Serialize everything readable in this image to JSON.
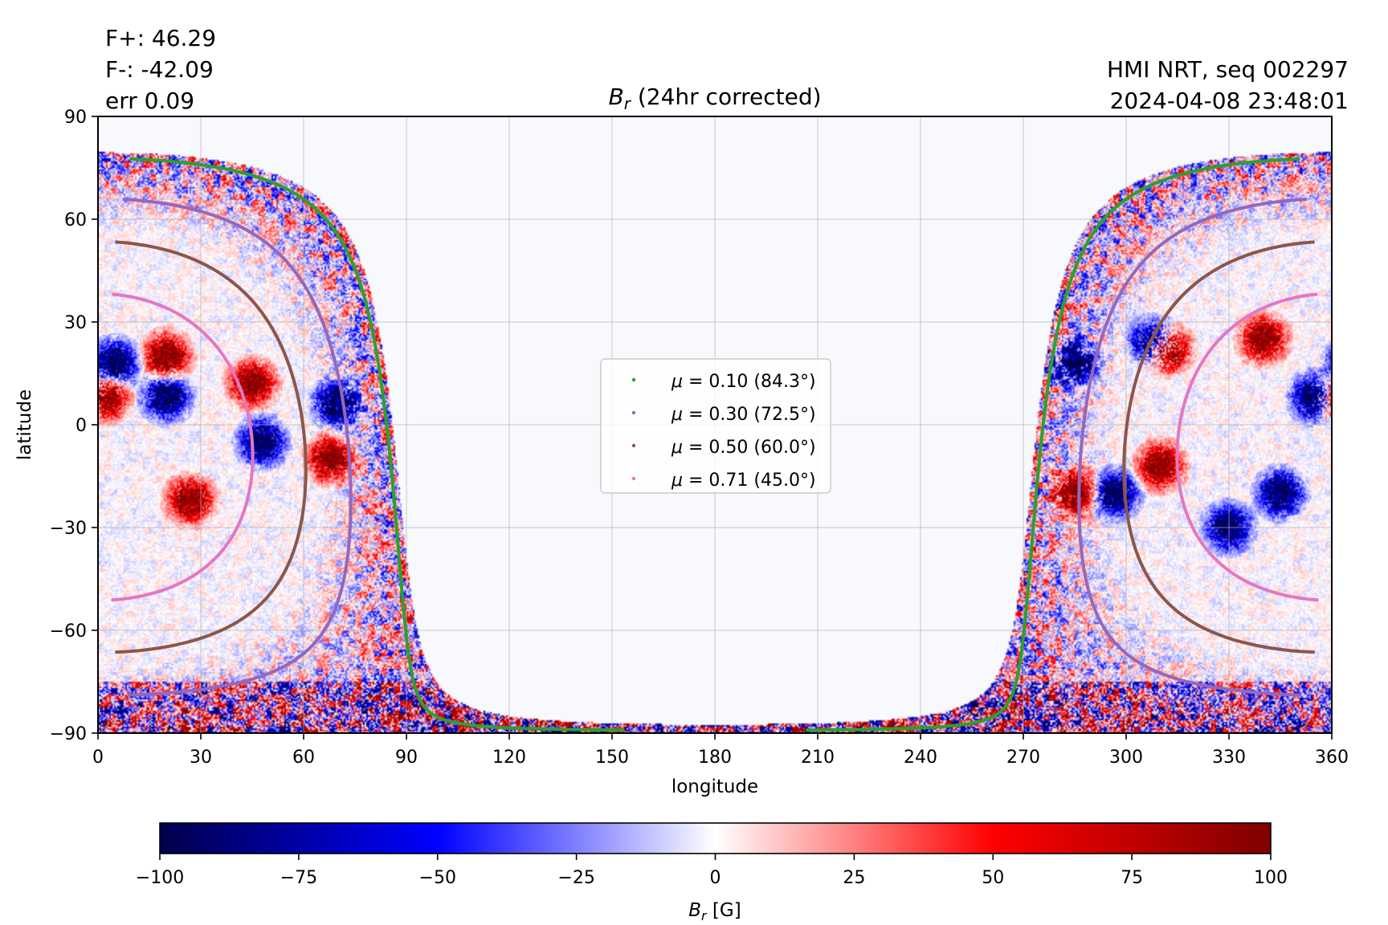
{
  "annotations": {
    "flux_plus": "F+: 46.29",
    "flux_minus": "F-: -42.09",
    "error": "err 0.09",
    "instrument": "HMI NRT, seq 002297",
    "timestamp": "2024-04-08 23:48:01"
  },
  "chart_data": {
    "type": "heatmap",
    "title": "B_r (24hr corrected)",
    "title_symbol": "B",
    "title_subscript": "r",
    "title_rest": " (24hr corrected)",
    "xlabel": "longitude",
    "ylabel": "latitude",
    "xlim": [
      0,
      360
    ],
    "ylim": [
      -90,
      90
    ],
    "xticks": [
      "0",
      "30",
      "60",
      "90",
      "120",
      "150",
      "180",
      "210",
      "240",
      "270",
      "300",
      "330",
      "360"
    ],
    "xtick_values": [
      0,
      30,
      60,
      90,
      120,
      150,
      180,
      210,
      240,
      270,
      300,
      330,
      360
    ],
    "yticks": [
      "−90",
      "−60",
      "−30",
      "0",
      "30",
      "60",
      "90"
    ],
    "ytick_values": [
      -90,
      -60,
      -30,
      0,
      30,
      60,
      90
    ],
    "grid": true,
    "disk_center_longitude": 0,
    "disk_center_latitude": -6.5,
    "masked_region_color": "#f8f9fd",
    "legend": {
      "placement": "center",
      "entries": [
        {
          "label": "0.10 (84.3°)",
          "mu": 0.1,
          "angle_deg": 84.3,
          "color": "#2ca02c"
        },
        {
          "label": "0.30 (72.5°)",
          "mu": 0.3,
          "angle_deg": 72.5,
          "color": "#9467bd"
        },
        {
          "label": "0.50 (60.0°)",
          "mu": 0.5,
          "angle_deg": 60.0,
          "color": "#8c564b"
        },
        {
          "label": "0.71 (45.0°)",
          "mu": 0.71,
          "angle_deg": 45.0,
          "color": "#e377c2"
        }
      ],
      "symbol": "μ",
      "equals": "="
    },
    "colorbar": {
      "label_symbol": "B",
      "label_subscript": "r",
      "label_rest": " [G]",
      "vmin": -100,
      "vmax": 100,
      "ticks": [
        "−100",
        "−75",
        "−50",
        "−25",
        "0",
        "25",
        "50",
        "75",
        "100"
      ],
      "tick_values": [
        -100,
        -75,
        -50,
        -25,
        0,
        25,
        50,
        75,
        100
      ],
      "colormap": "seismic",
      "colors": [
        "#00004c",
        "#0000ff",
        "#ffffff",
        "#ff0000",
        "#7f0000"
      ]
    },
    "active_regions": [
      {
        "lon": 2,
        "lat": 8,
        "sign": 1
      },
      {
        "lon": 5,
        "lat": 18,
        "sign": -1
      },
      {
        "lon": 20,
        "lat": 20,
        "sign": 1
      },
      {
        "lon": 20,
        "lat": 8,
        "sign": -1
      },
      {
        "lon": 27,
        "lat": -22,
        "sign": 1
      },
      {
        "lon": 45,
        "lat": 12,
        "sign": 1
      },
      {
        "lon": 70,
        "lat": 6,
        "sign": -1
      },
      {
        "lon": 48,
        "lat": -5,
        "sign": -1
      },
      {
        "lon": 68,
        "lat": -10,
        "sign": 1
      },
      {
        "lon": 285,
        "lat": 18,
        "sign": -1
      },
      {
        "lon": 308,
        "lat": 24,
        "sign": -1
      },
      {
        "lon": 312,
        "lat": 22,
        "sign": 1
      },
      {
        "lon": 310,
        "lat": -12,
        "sign": 1
      },
      {
        "lon": 297,
        "lat": -20,
        "sign": -1
      },
      {
        "lon": 285,
        "lat": -20,
        "sign": 1
      },
      {
        "lon": 355,
        "lat": 8,
        "sign": -1
      },
      {
        "lon": 340,
        "lat": 25,
        "sign": 1
      },
      {
        "lon": 330,
        "lat": -30,
        "sign": -1
      },
      {
        "lon": 345,
        "lat": -20,
        "sign": -1
      }
    ]
  }
}
